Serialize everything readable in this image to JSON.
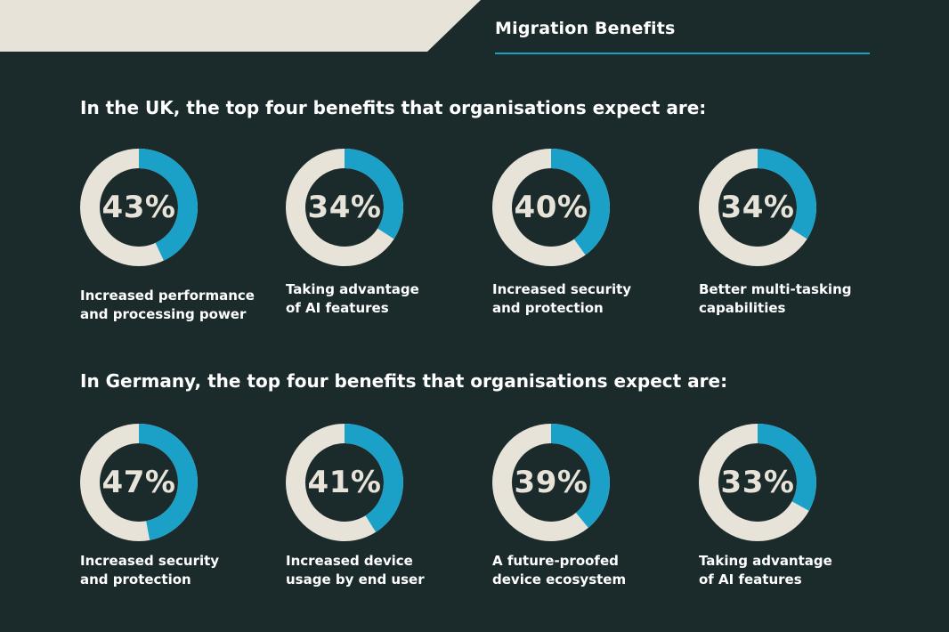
{
  "header": {
    "title": "Migration Benefits"
  },
  "colors": {
    "background": "#1b2b2c",
    "ring_track": "#e8e3d9",
    "ring_fill": "#1ba1c8",
    "value_text": "#e8e3d9",
    "accent_rule": "#1ba1c8"
  },
  "sections": [
    {
      "heading": "In the UK, the top four benefits that organisations expect are:"
    },
    {
      "heading": "In Germany, the top four benefits that organisations expect are:"
    }
  ],
  "chart_data": [
    {
      "type": "pie",
      "subtype": "donut",
      "group": "UK",
      "items": [
        {
          "value": 43,
          "value_label": "43%",
          "label_lines": [
            "Increased performance",
            "and processing power"
          ]
        },
        {
          "value": 34,
          "value_label": "34%",
          "label_lines": [
            "Taking advantage",
            "of AI features"
          ]
        },
        {
          "value": 40,
          "value_label": "40%",
          "label_lines": [
            "Increased security",
            "and protection"
          ]
        },
        {
          "value": 34,
          "value_label": "34%",
          "label_lines": [
            "Better multi-tasking",
            "capabilities"
          ]
        }
      ]
    },
    {
      "type": "pie",
      "subtype": "donut",
      "group": "Germany",
      "items": [
        {
          "value": 47,
          "value_label": "47%",
          "label_lines": [
            "Increased security",
            "and protection"
          ]
        },
        {
          "value": 41,
          "value_label": "41%",
          "label_lines": [
            "Increased device",
            "usage by end user"
          ]
        },
        {
          "value": 39,
          "value_label": "39%",
          "label_lines": [
            "A future-proofed",
            "device ecosystem"
          ]
        },
        {
          "value": 33,
          "value_label": "33%",
          "label_lines": [
            "Taking advantage",
            "of AI features"
          ]
        }
      ]
    }
  ]
}
